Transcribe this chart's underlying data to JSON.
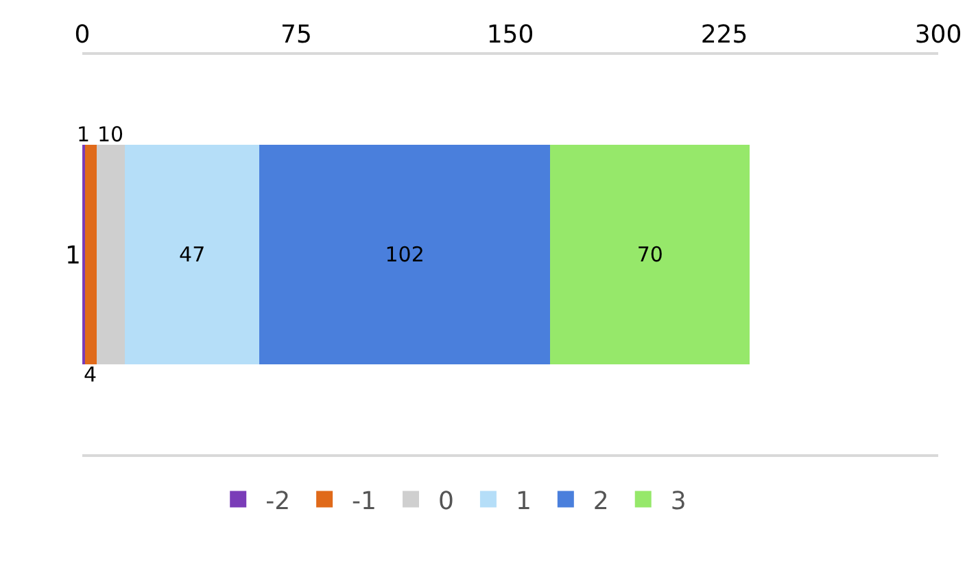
{
  "chart_data": {
    "type": "bar",
    "orientation": "horizontal",
    "stacked": true,
    "categories": [
      "1"
    ],
    "series": [
      {
        "name": "-2",
        "color": "#7a3cb8",
        "values": [
          1
        ]
      },
      {
        "name": "-1",
        "color": "#e06a1a",
        "values": [
          4
        ]
      },
      {
        "name": "0",
        "color": "#cfcfcf",
        "values": [
          10
        ]
      },
      {
        "name": "1",
        "color": "#b5def8",
        "values": [
          47
        ]
      },
      {
        "name": "2",
        "color": "#4a7fdc",
        "values": [
          102
        ]
      },
      {
        "name": "3",
        "color": "#96e86a",
        "values": [
          70
        ]
      }
    ],
    "xlim": [
      0,
      300
    ],
    "xticks": [
      0,
      75,
      150,
      225,
      300
    ],
    "data_labels": true,
    "legend": "bottom"
  }
}
